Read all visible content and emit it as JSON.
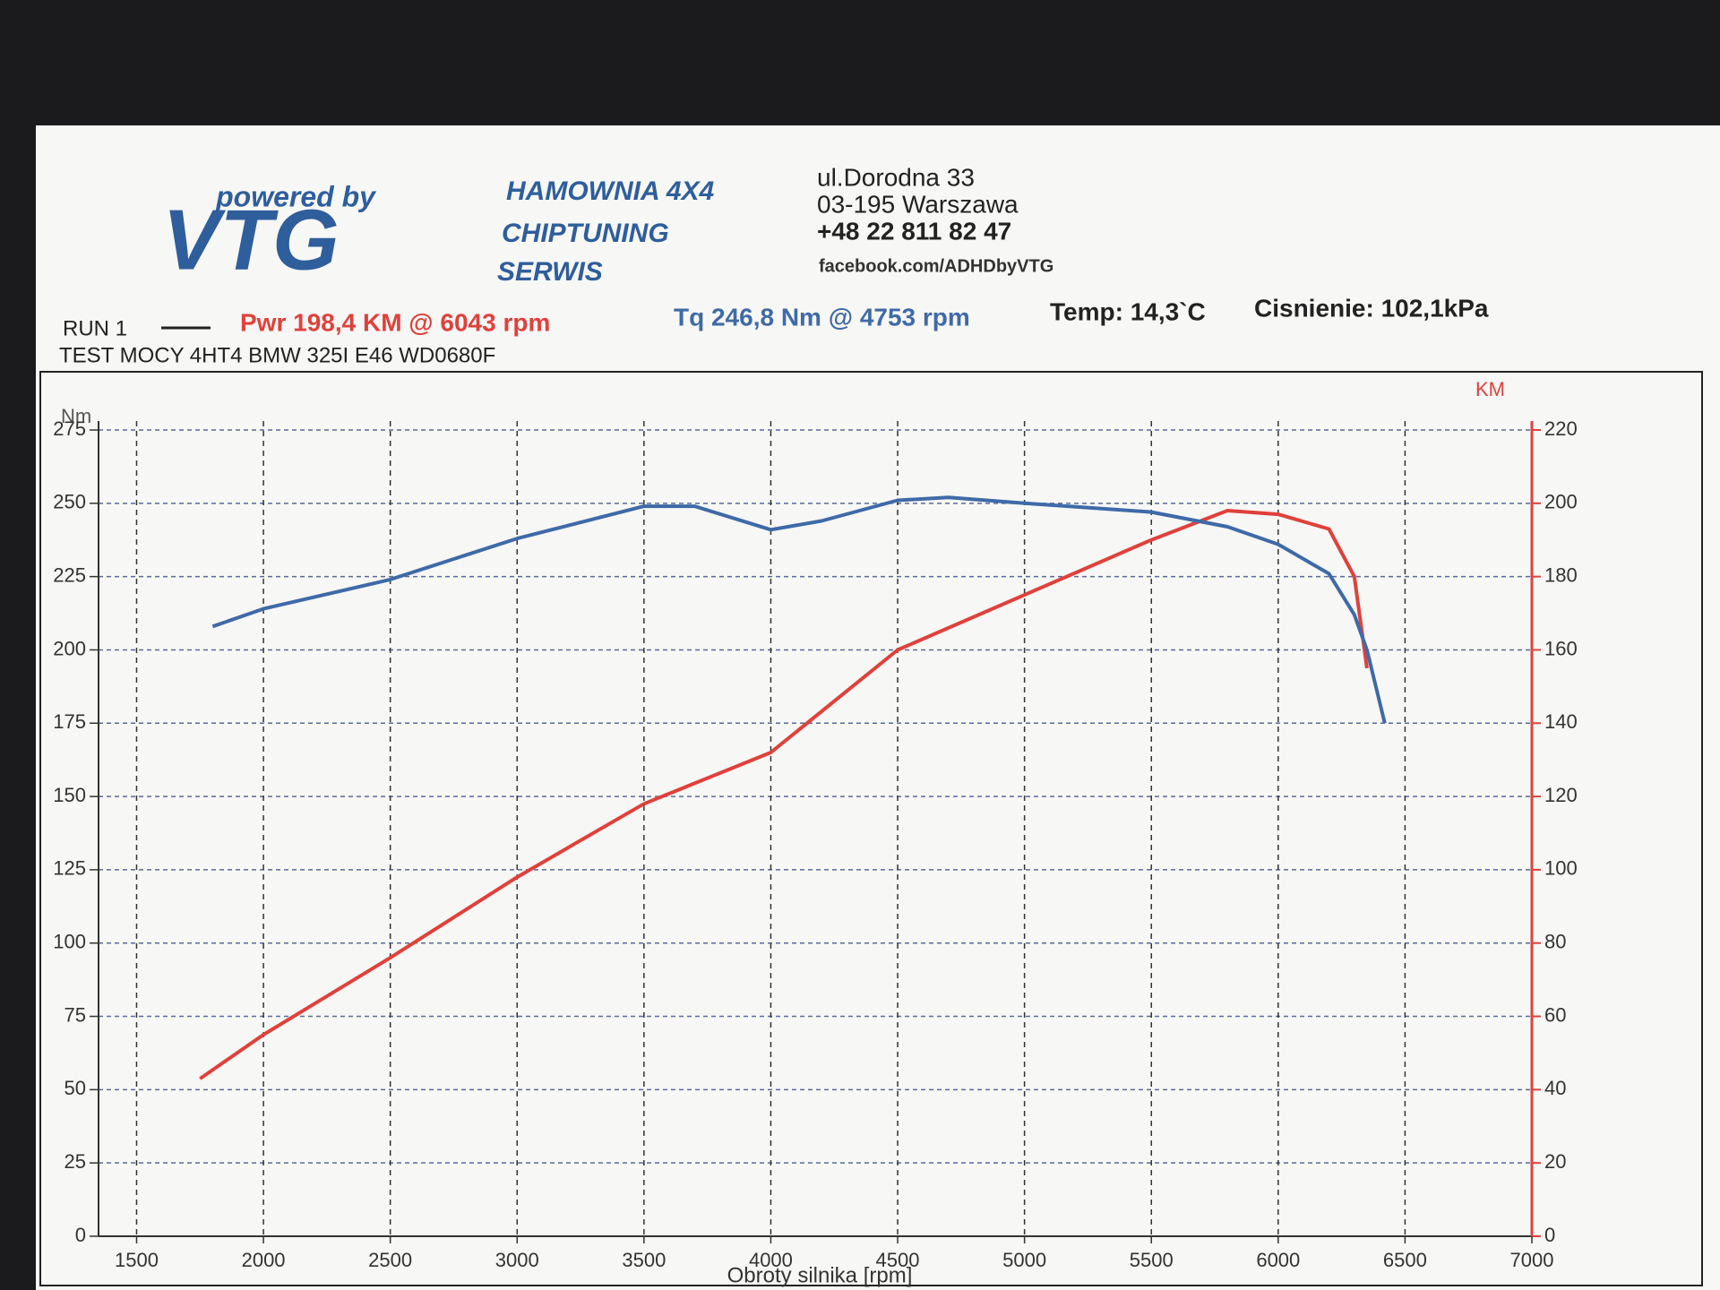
{
  "header": {
    "tagline": "powered by",
    "logo": "VTG",
    "services": [
      "HAMOWNIA 4X4",
      "CHIPTUNING",
      "SERWIS"
    ],
    "address": [
      "ul.Dorodna 33",
      "03-195 Warszawa",
      "+48 22 811 82 47",
      "facebook.com/ADHDbyVTG"
    ],
    "run": "RUN 1",
    "temp": "Temp: 14,3`C",
    "pressure": "Cisnienie: 102,1kPa"
  },
  "chart_data": {
    "type": "line",
    "title": "TEST MOCY 4HT4 BMW 325I E46 WD0680F",
    "xlabel": "Obroty silnika [rpm]",
    "ylabel": "Nm",
    "y2label": "KM",
    "xlim": [
      1350,
      7000
    ],
    "xticks": [
      1500,
      2000,
      2500,
      3000,
      3500,
      4000,
      4500,
      5000,
      5500,
      6000,
      6500,
      7000
    ],
    "ylim": [
      0,
      275
    ],
    "yticks": [
      0,
      25,
      50,
      75,
      100,
      125,
      150,
      175,
      200,
      225,
      250,
      275
    ],
    "y2lim": [
      0,
      220
    ],
    "y2ticks": [
      0,
      20,
      40,
      60,
      80,
      100,
      120,
      140,
      160,
      180,
      200,
      220
    ],
    "grid": true,
    "series": [
      {
        "name": "Pwr 198,4 KM @ 6043 rpm",
        "color": "#e0413b",
        "axis": "y2",
        "x": [
          1750,
          2000,
          2500,
          3000,
          3500,
          4000,
          4500,
          5000,
          5500,
          5800,
          6000,
          6200,
          6300,
          6350
        ],
        "values": [
          43,
          55,
          76,
          98,
          118,
          132,
          160,
          175,
          190,
          198,
          197,
          193,
          180,
          155
        ]
      },
      {
        "name": "Tq 246,8 Nm @ 4753 rpm",
        "color": "#3f6aa8",
        "x": [
          1800,
          2000,
          2500,
          3000,
          3500,
          3700,
          4000,
          4200,
          4500,
          4700,
          5000,
          5500,
          5800,
          6000,
          6200,
          6300,
          6350,
          6420
        ],
        "values": [
          208,
          214,
          224,
          238,
          249,
          249,
          241,
          244,
          251,
          252,
          250,
          247,
          242,
          236,
          226,
          212,
          200,
          175
        ]
      }
    ]
  }
}
